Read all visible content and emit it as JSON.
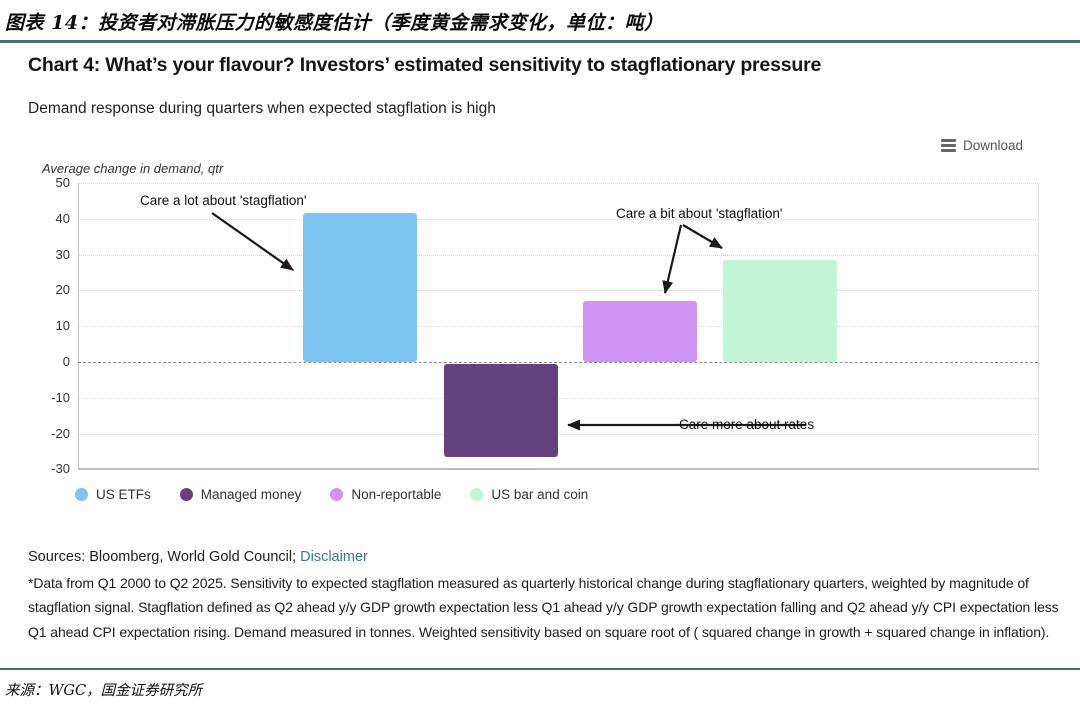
{
  "page": {
    "header_cn": "图表 14：投资者对滞胀压力的敏感度估计（季度黄金需求变化，单位：吨）",
    "footer_cn": "来源：WGC，国金证券研究所",
    "rule_color": "#456e79"
  },
  "chart": {
    "title": "Chart 4: What’s your flavour? Investors’ estimated sensitivity to stagflationary pressure",
    "subtitle": "Demand response during quarters when expected stagflation is high",
    "download_label": "Download",
    "y_unit_label": "Average change in demand, qtr"
  },
  "chart_data": {
    "type": "bar",
    "title": "Chart 4: What’s your flavour? Investors’ estimated sensitivity to stagflationary pressure",
    "subtitle": "Demand response during quarters when expected stagflation is high",
    "ylabel": "Average change in demand, qtr",
    "ylim": [
      -30,
      50
    ],
    "yticks": [
      50,
      40,
      30,
      20,
      10,
      0,
      -10,
      -20,
      -30
    ],
    "grid": true,
    "zero_line_style": "dashed",
    "legend_position": "bottom",
    "categories": [
      "US ETFs",
      "Managed money",
      "Non-reportable",
      "US bar and coin"
    ],
    "values": [
      41.5,
      -26,
      17,
      28.5
    ],
    "colors": [
      "#7CC4F2",
      "#65427F",
      "#CE93F3",
      "#C1F5D5"
    ],
    "annotations": [
      {
        "text": "Care a lot about 'stagflation'",
        "points_to": "US ETFs"
      },
      {
        "text": "Care a bit about 'stagflation'",
        "points_to": "Non-reportable; US bar and coin"
      },
      {
        "text": "Care more about rates",
        "points_to": "Managed money"
      }
    ]
  },
  "footer": {
    "sources_text": "Sources: Bloomberg, World Gold Council; ",
    "disclaimer_label": "Disclaimer",
    "footnote": "*Data from Q1 2000 to Q2 2025. Sensitivity to expected stagflation measured as quarterly historical change during stagflationary quarters, weighted by magnitude of stagflation signal. Stagflation defined as Q2 ahead y/y GDP growth expectation less Q1 ahead y/y GDP growth expectation falling and Q2 ahead y/y CPI expectation less Q1 ahead CPI expectation rising. Demand measured in tonnes. Weighted sensitivity based on square root of ( squared change in growth + squared change in inflation)."
  }
}
